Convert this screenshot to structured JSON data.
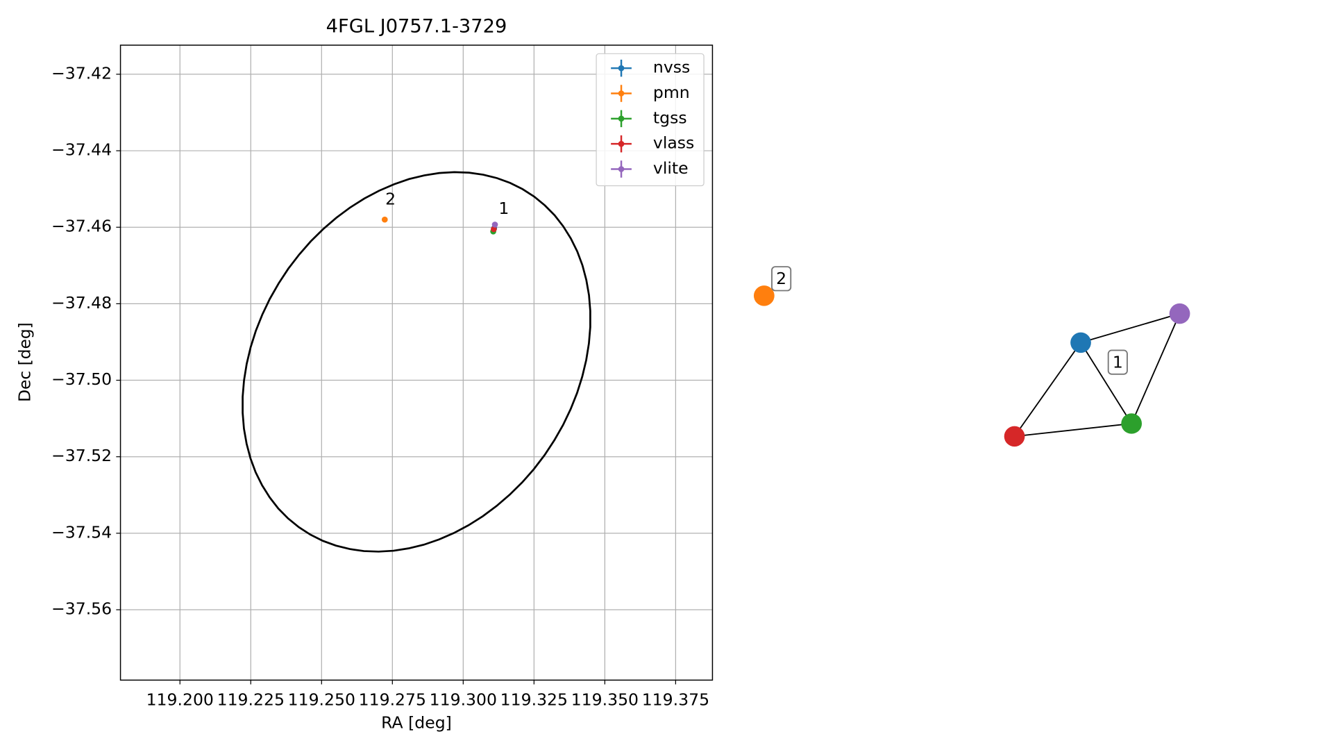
{
  "chart_data": [
    {
      "type": "scatter",
      "title": "4FGL J0757.1-3729",
      "x_label": "RA [deg]",
      "y_label": "Dec [deg]",
      "xlim": [
        119.179,
        119.388
      ],
      "xticks": [
        {
          "value": 119.2,
          "label": "119.200"
        },
        {
          "value": 119.225,
          "label": "119.225"
        },
        {
          "value": 119.25,
          "label": "119.250"
        },
        {
          "value": 119.275,
          "label": "119.275"
        },
        {
          "value": 119.3,
          "label": "119.300"
        },
        {
          "value": 119.325,
          "label": "119.325"
        },
        {
          "value": 119.35,
          "label": "119.350"
        },
        {
          "value": 119.375,
          "label": "119.375"
        }
      ],
      "ylim": [
        -37.5784,
        -37.4124
      ],
      "yticks": [
        {
          "value": -37.42,
          "label": "−37.42"
        },
        {
          "value": -37.44,
          "label": "−37.44"
        },
        {
          "value": -37.46,
          "label": "−37.46"
        },
        {
          "value": -37.48,
          "label": "−37.48"
        },
        {
          "value": -37.5,
          "label": "−37.50"
        },
        {
          "value": -37.52,
          "label": "−37.52"
        },
        {
          "value": -37.54,
          "label": "−37.54"
        },
        {
          "value": -37.56,
          "label": "−37.56"
        }
      ],
      "grid": true,
      "legend": "upper right",
      "series": [
        {
          "name": "nvss",
          "color": "#1f77b4",
          "x": [
            119.3109
          ],
          "values": [
            -37.4603
          ]
        },
        {
          "name": "pmn",
          "color": "#ff7f0e",
          "x": [
            119.2723
          ],
          "values": [
            -37.458
          ]
        },
        {
          "name": "tgss",
          "color": "#2ca02c",
          "x": [
            119.3106
          ],
          "values": [
            -37.4611
          ]
        },
        {
          "name": "vlass",
          "color": "#d62728",
          "x": [
            119.3108
          ],
          "values": [
            -37.4605
          ]
        },
        {
          "name": "vlite",
          "color": "#9467bd",
          "x": [
            119.3112
          ],
          "values": [
            -37.4593
          ]
        }
      ],
      "annotations": [
        {
          "text": "2",
          "x": 119.2725,
          "y": -37.456
        },
        {
          "text": "1",
          "x": 119.3125,
          "y": -37.4585
        }
      ],
      "ellipse": {
        "center": [
          119.2835,
          -37.4952
        ],
        "semi_major": 0.0638,
        "semi_minor": 0.0465,
        "angle": 23.3
      }
    },
    {
      "type": "network",
      "nodes": [
        {
          "color": "#ff7f0e"
        },
        {
          "color": "#1f77b4"
        },
        {
          "color": "#9467bd"
        },
        {
          "color": "#2ca02c"
        },
        {
          "color": "#d62728"
        }
      ],
      "edges": [
        [
          1,
          2
        ],
        [
          1,
          4
        ],
        [
          1,
          3
        ],
        [
          3,
          2
        ],
        [
          4,
          3
        ]
      ],
      "clusters": [
        {
          "label": "2"
        },
        {
          "label": "1"
        }
      ]
    }
  ]
}
